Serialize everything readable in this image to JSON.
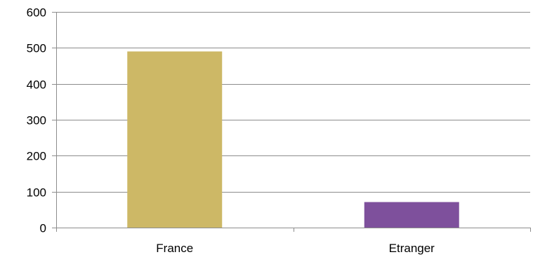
{
  "chart_data": {
    "type": "bar",
    "title": "",
    "xlabel": "",
    "ylabel": "",
    "categories": [
      "France",
      "Etranger"
    ],
    "values": [
      490,
      71
    ],
    "colors": [
      "#CDB866",
      "#7E509C"
    ],
    "ylim": [
      0,
      600
    ],
    "yticks": [
      0,
      100,
      200,
      300,
      400,
      500,
      600
    ],
    "grid": true,
    "legend": "none"
  }
}
